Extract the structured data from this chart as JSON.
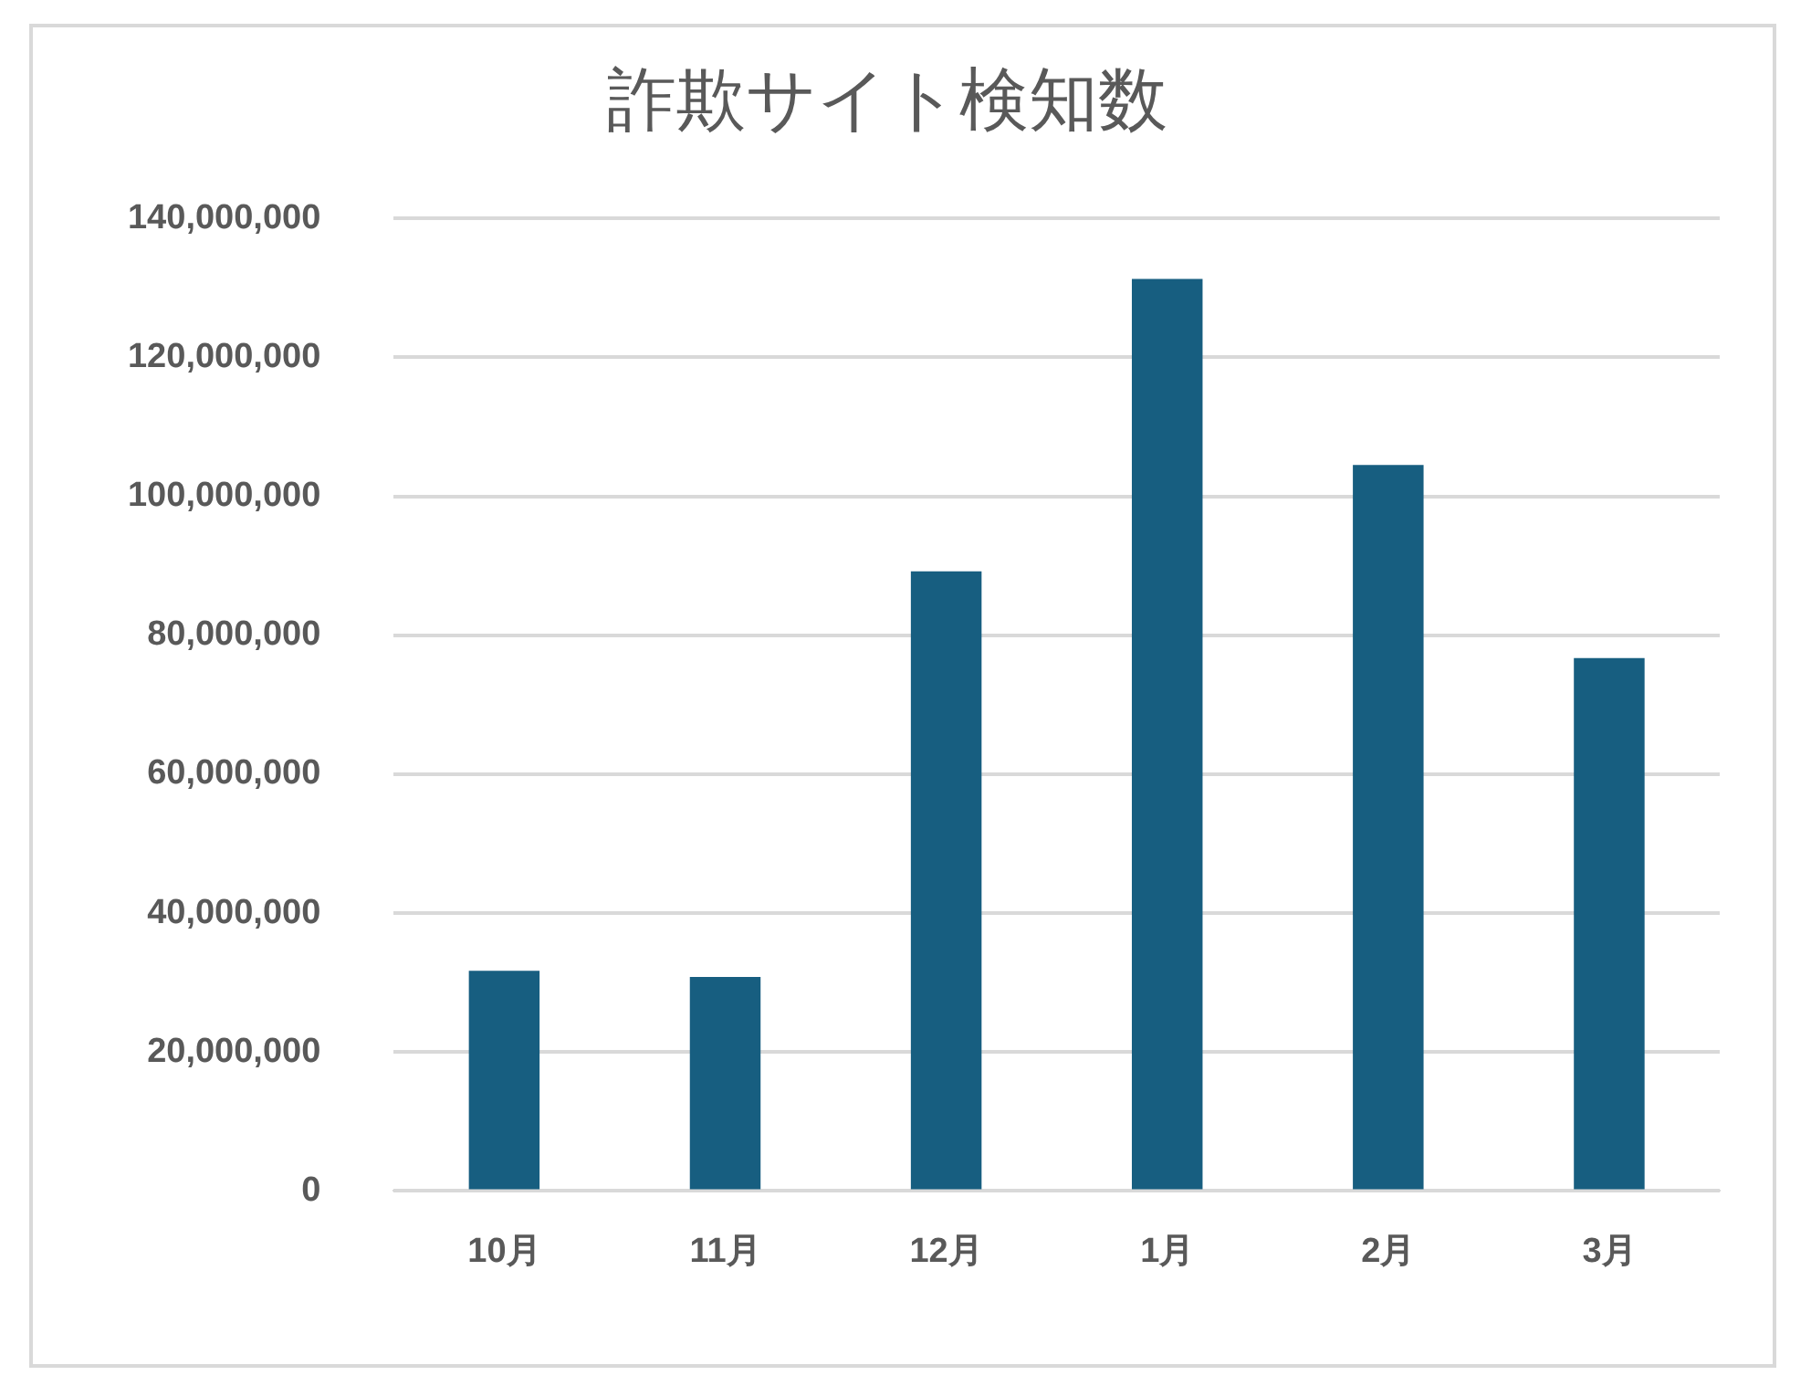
{
  "chart_data": {
    "type": "bar",
    "title": "詐欺サイト検知数",
    "categories": [
      "10月",
      "11月",
      "12月",
      "1月",
      "2月",
      "3月"
    ],
    "values": [
      31700000,
      30800000,
      89200000,
      131300000,
      104500000,
      76700000
    ],
    "color": "#175e80",
    "ylim": [
      0,
      140000000
    ],
    "yticks": [
      0,
      {
        "value": 20000000,
        "label": "20,000,000"
      },
      {
        "value": 40000000,
        "label": "40,000,000"
      },
      {
        "value": 60000000,
        "label": "60,000,000"
      },
      {
        "value": 80000000,
        "label": "80,000,000"
      },
      {
        "value": 100000000,
        "label": "100,000,000"
      },
      {
        "value": 120000000,
        "label": "120,000,000"
      },
      {
        "value": 140000000,
        "label": "140,000,000"
      }
    ],
    "grid": "y",
    "legend": false
  }
}
